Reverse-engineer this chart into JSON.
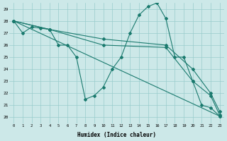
{
  "xlabel": "Humidex (Indice chaleur)",
  "xlim": [
    -0.5,
    23.5
  ],
  "ylim": [
    19.5,
    29.5
  ],
  "xticks": [
    0,
    1,
    2,
    3,
    4,
    5,
    6,
    7,
    8,
    9,
    10,
    11,
    12,
    13,
    14,
    15,
    16,
    17,
    18,
    19,
    20,
    21,
    22,
    23
  ],
  "yticks": [
    20,
    21,
    22,
    23,
    24,
    25,
    26,
    27,
    28,
    29
  ],
  "bg_color": "#cce8e8",
  "grid_color": "#99cccc",
  "line_color": "#1a7a6e",
  "line1_x": [
    0,
    1,
    2,
    3,
    4,
    5,
    6,
    7,
    8,
    9,
    10,
    11,
    12,
    13,
    14,
    15,
    16,
    17,
    18,
    19,
    20,
    21,
    22,
    23
  ],
  "line1_y": [
    28,
    27,
    27.5,
    27.4,
    27.3,
    26.0,
    26.0,
    25.0,
    21.5,
    21.8,
    22.5,
    24.0,
    25.0,
    27.0,
    28.5,
    29.2,
    29.5,
    28.2,
    25.0,
    25.0,
    23.0,
    21.0,
    20.8,
    20.1
  ],
  "line2_x": [
    0,
    23
  ],
  "line2_y": [
    28,
    20.1
  ],
  "line3_x": [
    0,
    4,
    10,
    17,
    20,
    22,
    23
  ],
  "line3_y": [
    28,
    27.3,
    26.0,
    25.8,
    23.0,
    21.8,
    20.2
  ],
  "line4_x": [
    0,
    4,
    10,
    17,
    20,
    22,
    23
  ],
  "line4_y": [
    28,
    27.3,
    26.5,
    26.0,
    24.0,
    22.0,
    20.5
  ],
  "figsize": [
    3.2,
    2.0
  ],
  "dpi": 100
}
